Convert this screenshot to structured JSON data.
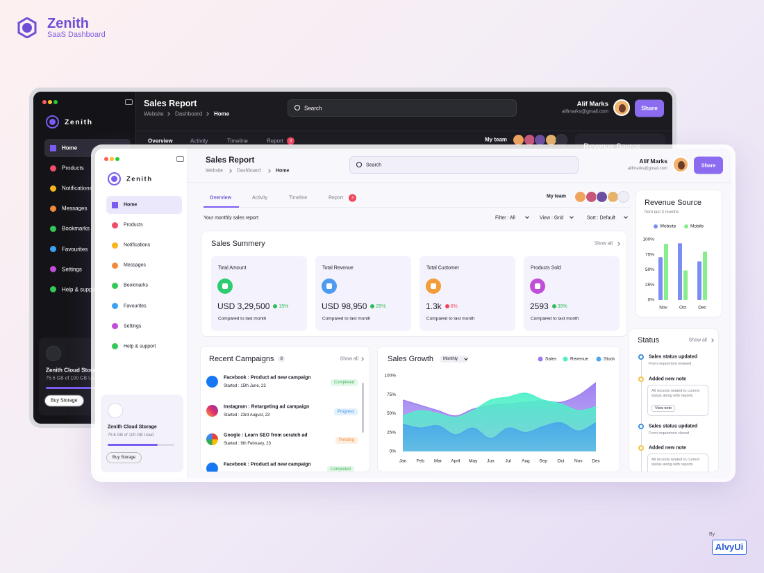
{
  "brand": {
    "name": "Zenith",
    "tagline": "SaaS Dashboard"
  },
  "header": {
    "title": "Sales Report",
    "breadcrumb": [
      "Website",
      "Dashboard",
      "Home"
    ],
    "search": "Search",
    "user_name": "Alif Marks",
    "user_email": "alifmarks@gmail.com",
    "share": "Share"
  },
  "sidebar": {
    "brand": "Zenith",
    "nav": [
      "Home",
      "Products",
      "Notifications",
      "Messages",
      "Bookmarks",
      "Favourites",
      "Settings",
      "Help & support"
    ],
    "storage_title": "Zenith Cloud Storage",
    "storage_usage": "75.6 GB of 100 GB Used",
    "storage_button": "Buy Storage"
  },
  "tabs": {
    "items": [
      "Overview",
      "Activity",
      "Timeline",
      "Report"
    ],
    "report_badge": 3,
    "team_label": "My team"
  },
  "toolbar": {
    "subtitle": "Your monthly sales report",
    "filters": [
      "Filter : All",
      "View : Grid",
      "Sort : Default"
    ]
  },
  "summary": {
    "title": "Sales Summery",
    "show_all": "Show all",
    "cards": [
      {
        "label": "Total Amount",
        "value": "USD 3,29,500",
        "change": "15%",
        "trend": "up",
        "note": "Compared to last month"
      },
      {
        "label": "Total Revenue",
        "value": "USD 98,950",
        "change": "25%",
        "trend": "up",
        "note": "Compared to last month"
      },
      {
        "label": "Total Customer",
        "value": "1.3k",
        "change": "6%",
        "trend": "down",
        "note": "Compared to last month"
      },
      {
        "label": "Products Sold",
        "value": "2593",
        "change": "39%",
        "trend": "up",
        "note": "Compared to last month"
      }
    ]
  },
  "campaigns": {
    "title": "Recent Campaigns",
    "count": 8,
    "show_all": "Show all",
    "items": [
      {
        "name": "Facebook : Product ad new campaign",
        "date": "Started : 15th June, 23",
        "status": "Completed"
      },
      {
        "name": "Instagram : Retargeting ad campaign",
        "date": "Started : 23rd August, 23",
        "status": "Progress"
      },
      {
        "name": "Google : Learn SEO from scratch ad",
        "date": "Started : 9th February, 23",
        "status": "Pending"
      },
      {
        "name": "Facebook : Product ad new campaign",
        "status": "Completed"
      }
    ]
  },
  "status": {
    "title": "Status",
    "show_all": "Show all",
    "items": [
      {
        "title": "Sales status updated",
        "detail": "From requirment  reviwed"
      },
      {
        "title": "Added new note",
        "note": "All records related to current status  along with reports",
        "button": "View note"
      },
      {
        "title": "Sales status updated",
        "detail": "From requirment closed"
      },
      {
        "title": "Added new note",
        "note": "All records related to current status  along with reports"
      }
    ]
  },
  "chart_data": [
    {
      "type": "bar",
      "title": "Revenue Source",
      "subtitle": "from last 3 months",
      "categories": [
        "Nov",
        "Oct",
        "Dec"
      ],
      "series": [
        {
          "name": "Website",
          "color": "#7b8ef2",
          "values": [
            71,
            94,
            64
          ]
        },
        {
          "name": "Mobile",
          "color": "#86ef8c",
          "values": [
            93,
            49,
            80
          ]
        }
      ],
      "ylim": [
        0,
        100
      ],
      "yticks": [
        {
          "value": 0,
          "label": "0%"
        },
        {
          "value": 25,
          "label": "25%"
        },
        {
          "value": 50,
          "label": "50%"
        },
        {
          "value": 75,
          "label": "75%"
        },
        {
          "value": 100,
          "label": "100%"
        }
      ]
    },
    {
      "type": "area",
      "title": "Sales Growth",
      "period_selector": "Monthly",
      "categories": [
        "Jan",
        "Feb",
        "Mar",
        "April",
        "May",
        "Jun",
        "Jul",
        "Aug",
        "Sep",
        "Oct",
        "Nov",
        "Dec"
      ],
      "series": [
        {
          "name": "Sales",
          "color": "#9a7cf0",
          "values": [
            68,
            61,
            54,
            47,
            56,
            61,
            63,
            65,
            67,
            65,
            74,
            91
          ]
        },
        {
          "name": "Revenue",
          "color": "#4ff0c8",
          "values": [
            47,
            54,
            50,
            45,
            54,
            68,
            72,
            77,
            68,
            63,
            54,
            59
          ]
        },
        {
          "name": "Stock",
          "color": "#4aa8ea",
          "values": [
            36,
            31,
            34,
            22,
            31,
            17,
            31,
            25,
            33,
            38,
            27,
            38
          ]
        }
      ],
      "ylim": [
        0,
        100
      ],
      "yticks": [
        {
          "value": 0,
          "label": "0%"
        },
        {
          "value": 25,
          "label": "25%"
        },
        {
          "value": 50,
          "label": "50%"
        },
        {
          "value": 75,
          "label": "75%"
        },
        {
          "value": 100,
          "label": "100%"
        }
      ]
    }
  ],
  "footer": {
    "by": "By",
    "brand": "AlvyUi"
  }
}
